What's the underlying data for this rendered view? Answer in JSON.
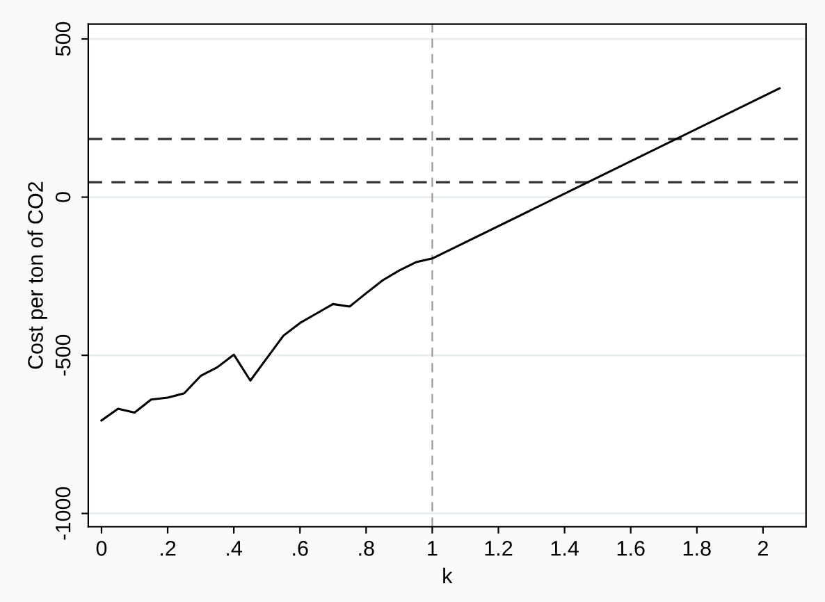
{
  "chart_data": {
    "type": "line",
    "xlabel": "k",
    "ylabel": "Cost per ton of CO2",
    "x": [
      0,
      0.05,
      0.1,
      0.15,
      0.2,
      0.25,
      0.3,
      0.35,
      0.4,
      0.45,
      0.5,
      0.55,
      0.6,
      0.65,
      0.7,
      0.75,
      0.8,
      0.85,
      0.9,
      0.95,
      1.0,
      2.05
    ],
    "series": [
      {
        "color": "#000000",
        "values": [
          -706,
          -669,
          -681,
          -640,
          -634,
          -620,
          -565,
          -538,
          -498,
          -580,
          -509,
          -438,
          -398,
          -368,
          -338,
          -346,
          -304,
          -263,
          -232,
          -206,
          -194,
          344
        ]
      }
    ],
    "xlim": [
      -0.04,
      2.13
    ],
    "ylim": [
      -1042,
      547
    ],
    "xticks": [
      {
        "value": 0,
        "label": "0"
      },
      {
        "value": 0.2,
        "label": ".2"
      },
      {
        "value": 0.4,
        "label": ".4"
      },
      {
        "value": 0.6,
        "label": ".6"
      },
      {
        "value": 0.8,
        "label": ".8"
      },
      1,
      1.2,
      1.4,
      1.6,
      1.8,
      2
    ],
    "yticks": [
      -1000,
      -500,
      0,
      500
    ],
    "ref_lines": [
      {
        "axis": "y",
        "value": 184,
        "color": "#333333",
        "line_style": "dashed"
      },
      {
        "axis": "y",
        "value": 47,
        "color": "#333333",
        "line_style": "dashed"
      },
      {
        "axis": "x",
        "value": 1,
        "color": "#999999",
        "line_style": "dashed"
      }
    ],
    "grid": "y",
    "marker": "none",
    "line_style": "solid"
  }
}
